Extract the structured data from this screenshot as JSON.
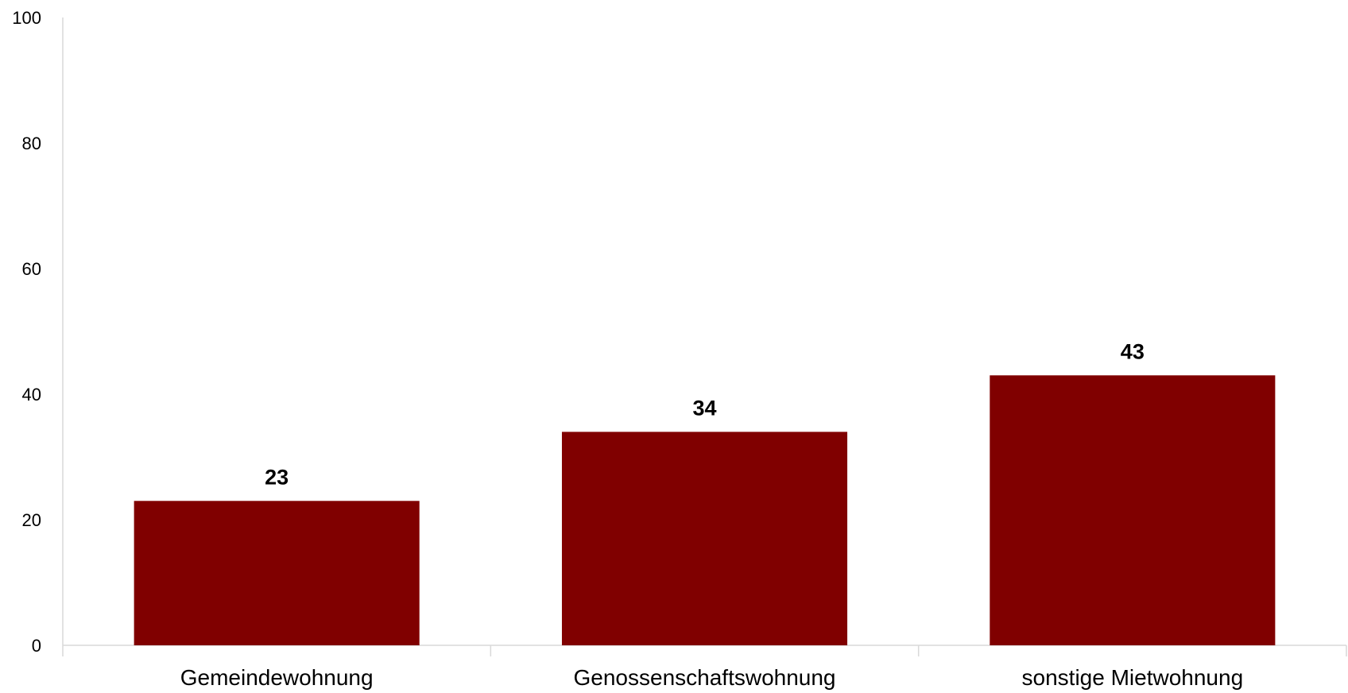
{
  "chart_data": {
    "type": "bar",
    "categories": [
      "Gemeindewohnung",
      "Genossenschaftswohnung",
      "sonstige Mietwohnung"
    ],
    "values": [
      23,
      34,
      43
    ],
    "data_labels": [
      "23",
      "34",
      "43"
    ],
    "ylim": [
      0,
      100
    ],
    "yticks": [
      0,
      20,
      40,
      60,
      80,
      100
    ],
    "ytick_labels": [
      "0",
      "20",
      "40",
      "60",
      "80",
      "100"
    ],
    "grid": false,
    "legend": "none",
    "bar_color": "#800000",
    "axis_color": "#d9d9d9"
  }
}
